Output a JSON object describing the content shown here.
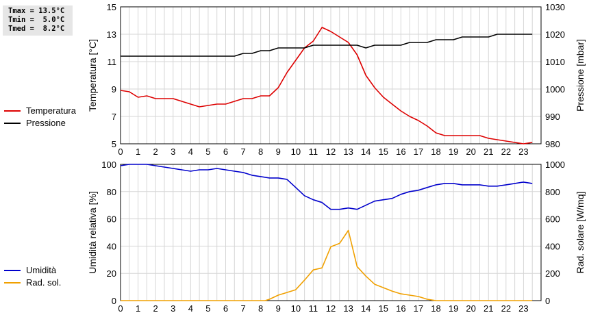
{
  "stats": {
    "tmax": "Tmax = 13.5°C",
    "tmin": "Tmin =  5.0°C",
    "tmed": "Tmed =  8.2°C"
  },
  "chart_data": [
    {
      "type": "line",
      "x_ticks": [
        "0",
        "1",
        "2",
        "3",
        "4",
        "5",
        "6",
        "7",
        "8",
        "9",
        "10",
        "11",
        "12",
        "13",
        "14",
        "15",
        "16",
        "17",
        "18",
        "19",
        "20",
        "21",
        "22",
        "23"
      ],
      "xlim": [
        0,
        24
      ],
      "ylabel_left": "Temperatura [°C]",
      "ylabel_right": "Pressione [mbar]",
      "ylim_left": [
        5,
        15
      ],
      "ylim_right": [
        980,
        1030
      ],
      "yticks_left": [
        "5",
        "7",
        "9",
        "11",
        "13",
        "15"
      ],
      "yticks_right": [
        "980",
        "990",
        "1000",
        "1010",
        "1020",
        "1030"
      ],
      "grid": true,
      "legend_position": "left",
      "series": [
        {
          "name": "Temperatura",
          "axis": "left",
          "color": "#dd0000",
          "x": [
            0,
            0.5,
            1,
            1.5,
            2,
            2.5,
            3,
            3.5,
            4,
            4.5,
            5,
            5.5,
            6,
            6.5,
            7,
            7.5,
            8,
            8.5,
            9,
            9.5,
            10,
            10.5,
            11,
            11.5,
            12,
            12.5,
            13,
            13.5,
            14,
            14.5,
            15,
            15.5,
            16,
            16.5,
            17,
            17.5,
            18,
            18.5,
            19,
            19.5,
            20,
            20.5,
            21,
            21.5,
            22,
            22.5,
            23,
            23.5
          ],
          "values": [
            8.9,
            8.8,
            8.4,
            8.5,
            8.3,
            8.3,
            8.3,
            8.1,
            7.9,
            7.7,
            7.8,
            7.9,
            7.9,
            8.1,
            8.3,
            8.3,
            8.5,
            8.5,
            9.1,
            10.2,
            11.1,
            12.0,
            12.5,
            13.5,
            13.2,
            12.8,
            12.4,
            11.5,
            10.0,
            9.1,
            8.4,
            7.9,
            7.4,
            7.0,
            6.7,
            6.3,
            5.8,
            5.6,
            5.6,
            5.6,
            5.6,
            5.6,
            5.4,
            5.3,
            5.2,
            5.1,
            5.0,
            5.1
          ]
        },
        {
          "name": "Pressione",
          "axis": "right",
          "color": "#000000",
          "x": [
            0,
            0.5,
            1,
            1.5,
            2,
            2.5,
            3,
            3.5,
            4,
            4.5,
            5,
            5.5,
            6,
            6.5,
            7,
            7.5,
            8,
            8.5,
            9,
            9.5,
            10,
            10.5,
            11,
            11.5,
            12,
            12.5,
            13,
            13.5,
            14,
            14.5,
            15,
            15.5,
            16,
            16.5,
            17,
            17.5,
            18,
            18.5,
            19,
            19.5,
            20,
            20.5,
            21,
            21.5,
            22,
            22.5,
            23,
            23.5
          ],
          "values": [
            1012,
            1012,
            1012,
            1012,
            1012,
            1012,
            1012,
            1012,
            1012,
            1012,
            1012,
            1012,
            1012,
            1012,
            1013,
            1013,
            1014,
            1014,
            1015,
            1015,
            1015,
            1015,
            1016,
            1016,
            1016,
            1016,
            1016,
            1016,
            1015,
            1016,
            1016,
            1016,
            1016,
            1017,
            1017,
            1017,
            1018,
            1018,
            1018,
            1019,
            1019,
            1019,
            1019,
            1020,
            1020,
            1020,
            1020,
            1020
          ]
        }
      ]
    },
    {
      "type": "line",
      "x_ticks": [
        "0",
        "1",
        "2",
        "3",
        "4",
        "5",
        "6",
        "7",
        "8",
        "9",
        "10",
        "11",
        "12",
        "13",
        "14",
        "15",
        "16",
        "17",
        "18",
        "19",
        "20",
        "21",
        "22",
        "23"
      ],
      "xlim": [
        0,
        24
      ],
      "ylabel_left": "Umidità relativa [%]",
      "ylabel_right": "Rad. solare [W/mq]",
      "ylim_left": [
        0,
        100
      ],
      "ylim_right": [
        0,
        1000
      ],
      "yticks_left": [
        "0",
        "20",
        "40",
        "60",
        "80",
        "100"
      ],
      "yticks_right": [
        "0",
        "200",
        "400",
        "600",
        "800",
        "1000"
      ],
      "grid": true,
      "legend_position": "left",
      "series": [
        {
          "name": "Umidità",
          "axis": "left",
          "color": "#0000cc",
          "x": [
            0,
            0.5,
            1,
            1.5,
            2,
            2.5,
            3,
            3.5,
            4,
            4.5,
            5,
            5.5,
            6,
            6.5,
            7,
            7.5,
            8,
            8.5,
            9,
            9.5,
            10,
            10.5,
            11,
            11.5,
            12,
            12.5,
            13,
            13.5,
            14,
            14.5,
            15,
            15.5,
            16,
            16.5,
            17,
            17.5,
            18,
            18.5,
            19,
            19.5,
            20,
            20.5,
            21,
            21.5,
            22,
            22.5,
            23,
            23.5
          ],
          "values": [
            99,
            100,
            100,
            100,
            99,
            98,
            97,
            96,
            95,
            96,
            96,
            97,
            96,
            95,
            94,
            92,
            91,
            90,
            90,
            89,
            83,
            77,
            74,
            72,
            67,
            67,
            68,
            67,
            70,
            73,
            74,
            75,
            78,
            80,
            81,
            83,
            85,
            86,
            86,
            85,
            85,
            85,
            84,
            84,
            85,
            86,
            87,
            86
          ]
        },
        {
          "name": "Rad. sol.",
          "axis": "right",
          "color": "#f0a000",
          "x": [
            0,
            0.5,
            1,
            1.5,
            2,
            2.5,
            3,
            3.5,
            4,
            4.5,
            5,
            5.5,
            6,
            6.5,
            7,
            7.5,
            8,
            8.25,
            8.5,
            9,
            9.5,
            10,
            10.5,
            11,
            11.5,
            12,
            12.5,
            13,
            13.5,
            14,
            14.5,
            15,
            15.5,
            16,
            16.5,
            17,
            17.5,
            18,
            18.5,
            19,
            19.5,
            20,
            20.5,
            21,
            21.5,
            22,
            22.5,
            23,
            23.5
          ],
          "values": [
            0,
            0,
            0,
            0,
            0,
            0,
            0,
            0,
            0,
            0,
            0,
            0,
            0,
            0,
            0,
            0,
            0,
            0,
            10,
            40,
            60,
            80,
            150,
            225,
            240,
            395,
            420,
            515,
            250,
            180,
            120,
            95,
            70,
            50,
            40,
            30,
            10,
            0,
            0,
            0,
            0,
            0,
            0,
            0,
            0,
            0,
            0,
            0,
            0
          ]
        }
      ]
    }
  ]
}
